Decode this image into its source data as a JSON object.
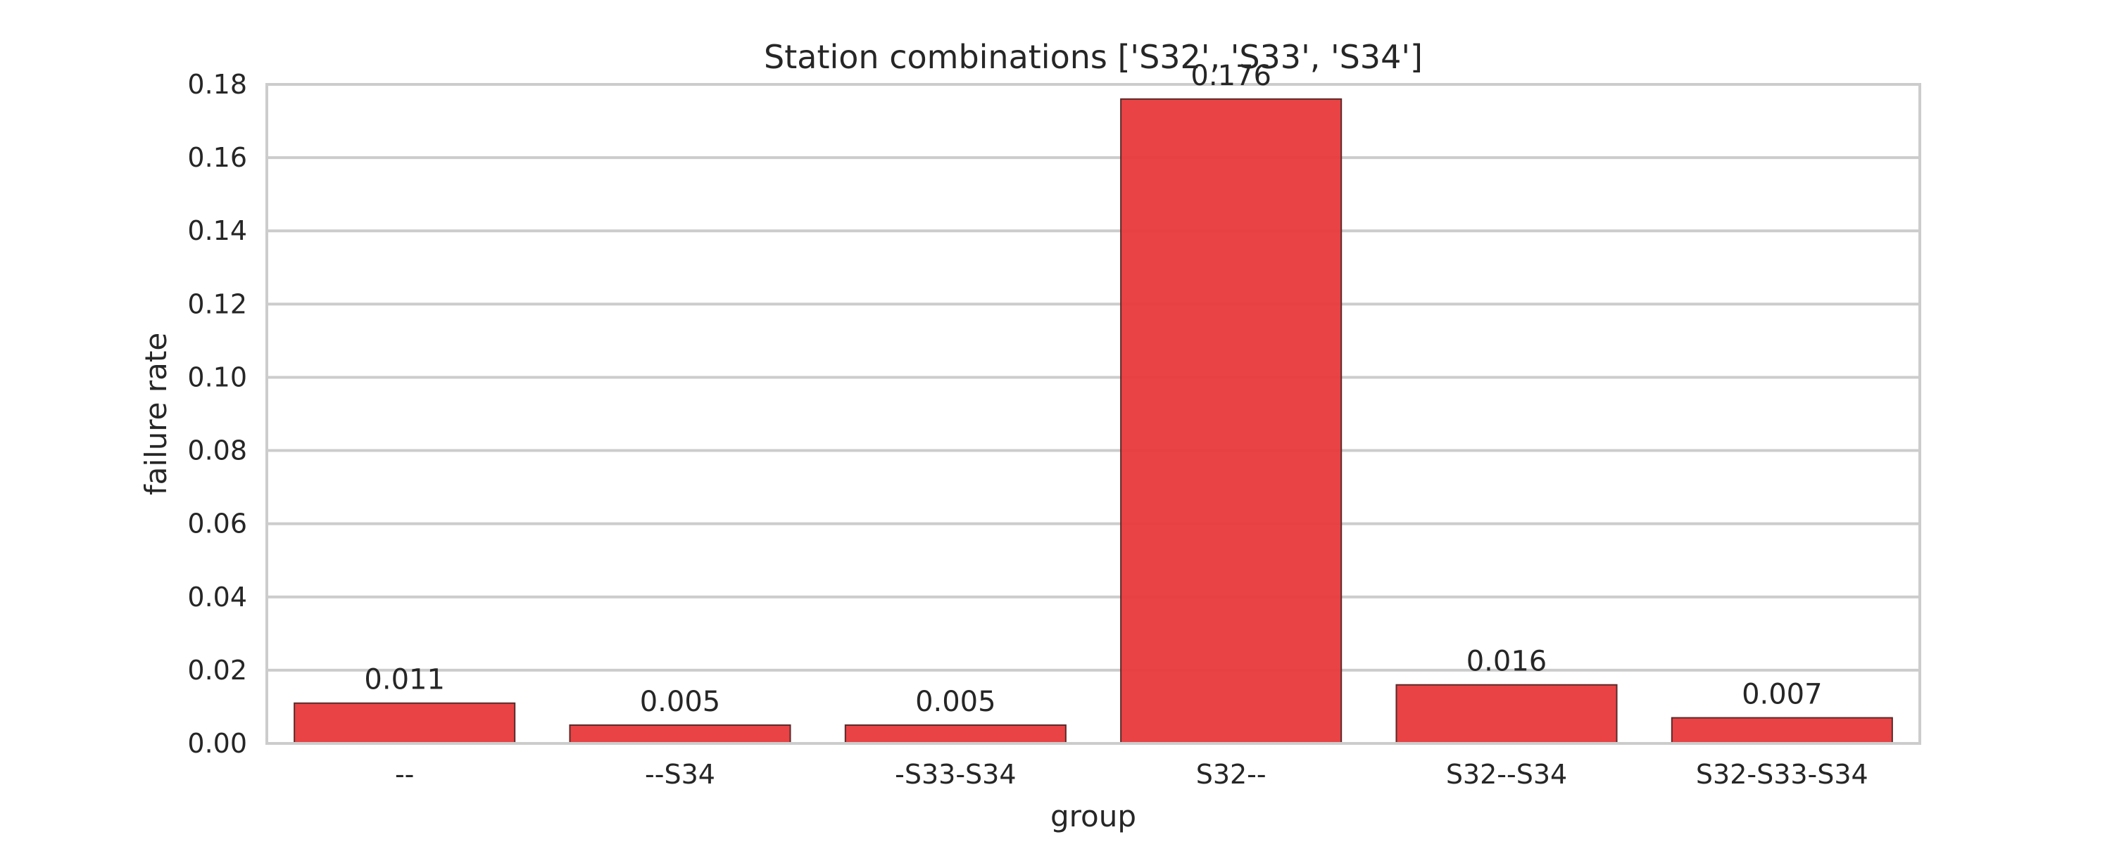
{
  "chart_data": {
    "type": "bar",
    "title": "Station combinations ['S32', 'S33', 'S34']",
    "xlabel": "group",
    "ylabel": "failure rate",
    "categories": [
      "--",
      "--S34",
      "-S33-S34",
      "S32--",
      "S32--S34",
      "S32-S33-S34"
    ],
    "values": [
      0.011,
      0.005,
      0.005,
      0.176,
      0.016,
      0.007
    ],
    "value_labels": [
      "0.011",
      "0.005",
      "0.005",
      "0.176",
      "0.016",
      "0.007"
    ],
    "ylim": [
      0,
      0.18
    ],
    "yticks": [
      0.0,
      0.02,
      0.04,
      0.06,
      0.08,
      0.1,
      0.12,
      0.14,
      0.16,
      0.18
    ],
    "ytick_labels": [
      "0.00",
      "0.02",
      "0.04",
      "0.06",
      "0.08",
      "0.10",
      "0.12",
      "0.14",
      "0.16",
      "0.18"
    ],
    "grid": true,
    "bar_color": "#e8393b",
    "bar_edge_color": "#5a2a2a"
  }
}
